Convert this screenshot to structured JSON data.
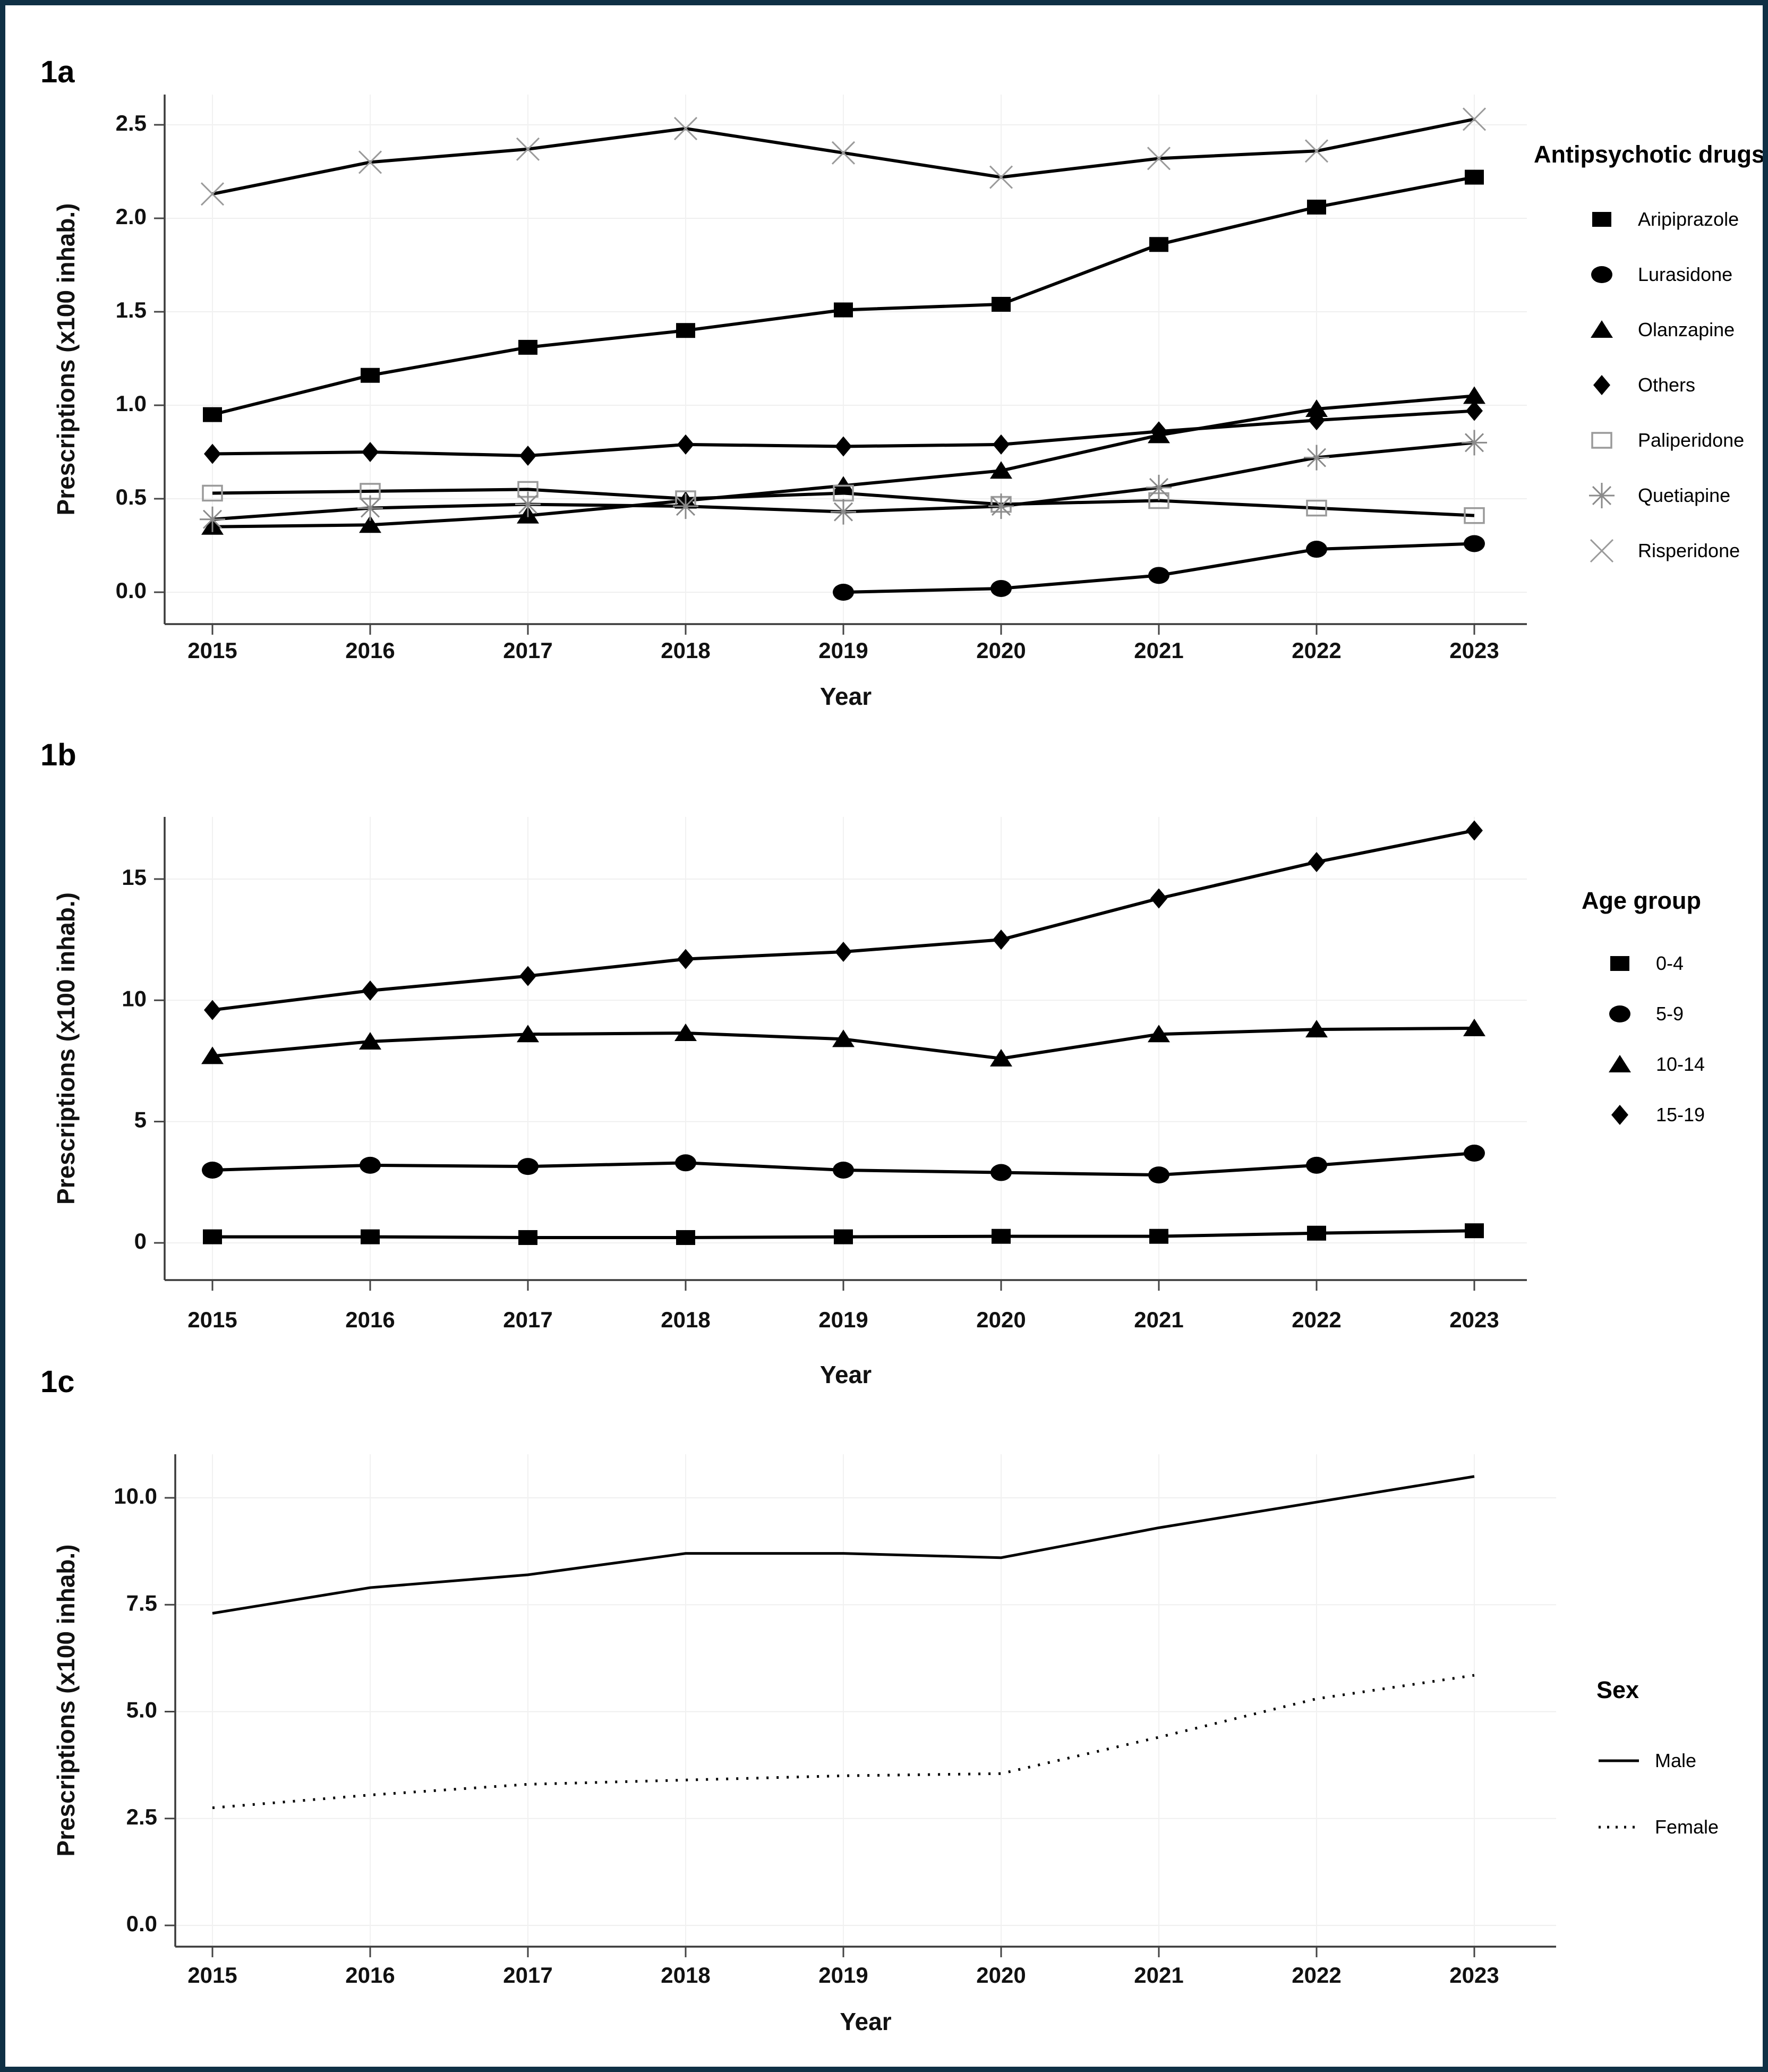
{
  "figure": {
    "border_color": "#0f3045",
    "background_color": "#ffffff"
  },
  "chart_data": [
    {
      "id": "1a",
      "type": "line",
      "panel_label": "1a",
      "title": "",
      "xlabel": "Year",
      "ylabel": "Prescriptions (x100 inhab.)",
      "x_labels": [
        "2015",
        "2016",
        "2017",
        "2018",
        "2019",
        "2020",
        "2021",
        "2022",
        "2023"
      ],
      "yticks": [
        0,
        0.5,
        1.0,
        1.5,
        2.0,
        2.5
      ],
      "ytick_labels": [
        "0.0",
        "0.5",
        "1.0",
        "1.5",
        "2.0",
        "2.5"
      ],
      "ylim": [
        0,
        2.65
      ],
      "grid": true,
      "legend_title": "Antipsychotic drugs",
      "legend_position": "right",
      "series": [
        {
          "name": "Aripiprazole",
          "marker": "filled-square",
          "line": "solid",
          "values": [
            0.95,
            1.16,
            1.31,
            1.4,
            1.51,
            1.54,
            1.86,
            2.06,
            2.22
          ]
        },
        {
          "name": "Lurasidone",
          "marker": "filled-circle",
          "line": "solid",
          "values": [
            null,
            null,
            null,
            null,
            0.0,
            0.02,
            0.09,
            0.23,
            0.26
          ]
        },
        {
          "name": "Olanzapine",
          "marker": "filled-triangle",
          "line": "solid",
          "values": [
            0.35,
            0.36,
            0.41,
            0.49,
            0.57,
            0.65,
            0.84,
            0.98,
            1.05
          ]
        },
        {
          "name": "Others",
          "marker": "filled-diamond",
          "line": "solid",
          "values": [
            0.74,
            0.75,
            0.73,
            0.79,
            0.78,
            0.79,
            0.86,
            0.92,
            0.97
          ]
        },
        {
          "name": "Paliperidone",
          "marker": "open-square",
          "line": "solid",
          "values": [
            0.53,
            0.54,
            0.55,
            0.5,
            0.53,
            0.47,
            0.49,
            0.45,
            0.41
          ]
        },
        {
          "name": "Quetiapine",
          "marker": "asterisk",
          "line": "solid",
          "values": [
            0.39,
            0.45,
            0.47,
            0.46,
            0.43,
            0.46,
            0.56,
            0.72,
            0.8
          ]
        },
        {
          "name": "Risperidone",
          "marker": "x-cross",
          "line": "solid",
          "values": [
            2.13,
            2.3,
            2.37,
            2.48,
            2.35,
            2.22,
            2.32,
            2.36,
            2.53
          ]
        }
      ]
    },
    {
      "id": "1b",
      "type": "line",
      "panel_label": "1b",
      "title": "",
      "xlabel": "Year",
      "ylabel": "Prescriptions (x100 inhab.)",
      "x_labels": [
        "2015",
        "2016",
        "2017",
        "2018",
        "2019",
        "2020",
        "2021",
        "2022",
        "2023"
      ],
      "yticks": [
        0,
        5,
        10,
        15
      ],
      "ytick_labels": [
        "0",
        "5",
        "10",
        "15"
      ],
      "ylim": [
        0,
        17.5
      ],
      "grid": true,
      "legend_title": "Age group",
      "legend_position": "right",
      "series": [
        {
          "name": "0-4",
          "marker": "filled-square",
          "line": "solid",
          "values": [
            0.25,
            0.25,
            0.22,
            0.22,
            0.25,
            0.27,
            0.27,
            0.4,
            0.5
          ]
        },
        {
          "name": "5-9",
          "marker": "filled-circle",
          "line": "solid",
          "values": [
            3.0,
            3.2,
            3.15,
            3.3,
            3.0,
            2.9,
            2.8,
            3.2,
            3.7
          ]
        },
        {
          "name": "10-14",
          "marker": "filled-triangle",
          "line": "solid",
          "values": [
            7.7,
            8.3,
            8.6,
            8.65,
            8.4,
            7.6,
            8.6,
            8.8,
            8.85
          ]
        },
        {
          "name": "15-19",
          "marker": "filled-diamond",
          "line": "solid",
          "values": [
            9.6,
            10.4,
            11.0,
            11.7,
            12.0,
            12.5,
            14.2,
            15.7,
            17.0
          ]
        }
      ]
    },
    {
      "id": "1c",
      "type": "line",
      "panel_label": "1c",
      "title": "",
      "xlabel": "Year",
      "ylabel": "Prescriptions (x100 inhab.)",
      "x_labels": [
        "2015",
        "2016",
        "2017",
        "2018",
        "2019",
        "2020",
        "2021",
        "2022",
        "2023"
      ],
      "yticks": [
        0,
        2.5,
        5.0,
        7.5,
        10.0
      ],
      "ytick_labels": [
        "0.0",
        "2.5",
        "5.0",
        "7.5",
        "10.0"
      ],
      "ylim": [
        0,
        11.2
      ],
      "grid": true,
      "legend_title": "Sex",
      "legend_position": "right",
      "series": [
        {
          "name": "Male",
          "marker": "none",
          "line": "solid",
          "values": [
            7.3,
            7.9,
            8.2,
            8.7,
            8.7,
            8.6,
            9.3,
            9.9,
            10.5
          ]
        },
        {
          "name": "Female",
          "marker": "none",
          "line": "dotted",
          "values": [
            2.75,
            3.05,
            3.3,
            3.4,
            3.5,
            3.55,
            4.4,
            5.3,
            5.85
          ]
        }
      ]
    }
  ]
}
